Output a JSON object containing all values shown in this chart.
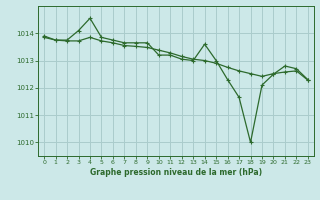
{
  "background_color": "#cce8e8",
  "grid_color": "#aacccc",
  "line_color": "#2d6a2d",
  "title": "Graphe pression niveau de la mer (hPa)",
  "xlim": [
    -0.5,
    23.5
  ],
  "ylim": [
    1009.5,
    1015.0
  ],
  "yticks": [
    1010,
    1011,
    1012,
    1013,
    1014
  ],
  "xticks": [
    0,
    1,
    2,
    3,
    4,
    5,
    6,
    7,
    8,
    9,
    10,
    11,
    12,
    13,
    14,
    15,
    16,
    17,
    18,
    19,
    20,
    21,
    22,
    23
  ],
  "series": [
    [
      0,
      1013.9
    ],
    [
      1,
      1013.75
    ],
    [
      2,
      1013.75
    ],
    [
      3,
      1014.1
    ],
    [
      4,
      1014.55
    ],
    [
      5,
      1013.85
    ],
    [
      6,
      1013.75
    ],
    [
      7,
      1013.65
    ],
    [
      8,
      1013.65
    ],
    [
      9,
      1013.65
    ],
    [
      10,
      1013.2
    ],
    [
      11,
      1013.2
    ],
    [
      12,
      1013.05
    ],
    [
      13,
      1013.0
    ],
    [
      14,
      1013.6
    ],
    [
      15,
      1013.0
    ],
    [
      16,
      1012.3
    ],
    [
      17,
      1011.65
    ],
    [
      18,
      1010.0
    ],
    [
      19,
      1012.1
    ],
    [
      20,
      1012.5
    ],
    [
      21,
      1012.8
    ],
    [
      22,
      1012.7
    ],
    [
      23,
      1012.3
    ]
  ],
  "series2": [
    [
      0,
      1013.85
    ],
    [
      1,
      1013.75
    ],
    [
      2,
      1013.72
    ],
    [
      3,
      1013.72
    ],
    [
      4,
      1013.85
    ],
    [
      5,
      1013.72
    ],
    [
      6,
      1013.65
    ],
    [
      7,
      1013.55
    ],
    [
      8,
      1013.52
    ],
    [
      9,
      1013.48
    ],
    [
      10,
      1013.38
    ],
    [
      11,
      1013.28
    ],
    [
      12,
      1013.15
    ],
    [
      13,
      1013.05
    ],
    [
      14,
      1013.0
    ],
    [
      15,
      1012.9
    ],
    [
      16,
      1012.75
    ],
    [
      17,
      1012.62
    ],
    [
      18,
      1012.52
    ],
    [
      19,
      1012.42
    ],
    [
      20,
      1012.52
    ],
    [
      21,
      1012.58
    ],
    [
      22,
      1012.62
    ],
    [
      23,
      1012.28
    ]
  ]
}
